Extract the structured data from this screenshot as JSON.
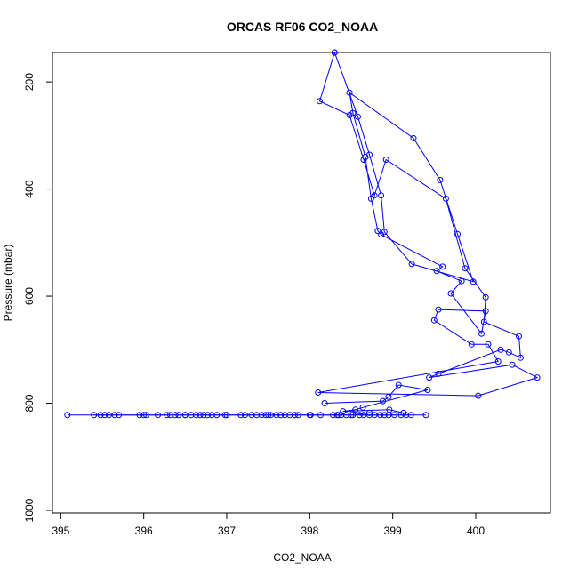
{
  "chart_data": {
    "type": "line",
    "title": "ORCAS RF06 CO2_NOAA",
    "xlabel": "CO2_NOAA",
    "ylabel": "Pressure (mbar)",
    "xlim": [
      394.9,
      400.9
    ],
    "ylim": [
      1005,
      145
    ],
    "y_reversed": true,
    "x_ticks": [
      395,
      396,
      397,
      398,
      399,
      400
    ],
    "y_ticks": [
      200,
      400,
      600,
      800,
      1000
    ],
    "series_color": "#0000ff",
    "marker": "open-circle",
    "grid": false,
    "series": [
      {
        "values": [
          [
            398.3,
            145
          ],
          [
            398.12,
            236
          ],
          [
            398.48,
            262
          ],
          [
            398.65,
            345
          ],
          [
            398.78,
            412
          ],
          [
            398.92,
            345
          ],
          [
            399.64,
            418
          ],
          [
            399.87,
            548
          ],
          [
            400.12,
            602
          ],
          [
            400.1,
            648
          ],
          [
            400.52,
            675
          ],
          [
            400.54,
            715
          ],
          [
            400.4,
            705
          ],
          [
            400.3,
            700
          ],
          [
            399.55,
            745
          ],
          [
            399.44,
            752
          ],
          [
            400.44,
            728
          ],
          [
            400.74,
            752
          ],
          [
            400.03,
            786
          ],
          [
            398.1,
            780
          ],
          [
            400.27,
            722
          ],
          [
            400.15,
            690
          ],
          [
            399.95,
            690
          ],
          [
            399.5,
            645
          ],
          [
            399.55,
            625
          ],
          [
            400.12,
            628
          ],
          [
            400.07,
            670
          ],
          [
            399.7,
            595
          ],
          [
            399.83,
            572
          ],
          [
            399.53,
            553
          ],
          [
            399.6,
            545
          ],
          [
            398.86,
            485
          ],
          [
            398.82,
            478
          ],
          [
            398.74,
            418
          ],
          [
            398.67,
            340
          ],
          [
            398.52,
            258
          ],
          [
            398.48,
            220
          ],
          [
            399.25,
            305
          ],
          [
            399.57,
            383
          ],
          [
            399.78,
            484
          ],
          [
            399.97,
            573
          ],
          [
            399.23,
            540
          ],
          [
            398.9,
            480
          ],
          [
            398.86,
            412
          ],
          [
            398.72,
            336
          ],
          [
            398.58,
            265
          ],
          [
            398.3,
            145
          ]
        ]
      },
      {
        "values": [
          [
            398.18,
            800
          ],
          [
            398.88,
            796
          ],
          [
            398.95,
            788
          ],
          [
            399.07,
            766
          ],
          [
            399.42,
            775
          ],
          [
            398.64,
            808
          ],
          [
            398.55,
            812
          ],
          [
            398.4,
            815
          ],
          [
            398.96,
            812
          ],
          [
            399.13,
            818
          ],
          [
            398.72,
            818
          ],
          [
            398.5,
            822
          ],
          [
            399.4,
            822
          ],
          [
            398.35,
            822
          ],
          [
            398.0,
            822
          ],
          [
            397.5,
            822
          ],
          [
            397.0,
            822
          ],
          [
            396.5,
            822
          ],
          [
            396.0,
            822
          ],
          [
            395.08,
            822
          ]
        ]
      },
      {
        "values": [
          [
            395.4,
            822
          ],
          [
            395.48,
            822
          ],
          [
            395.53,
            822
          ],
          [
            395.58,
            822
          ],
          [
            395.65,
            822
          ],
          [
            395.7,
            822
          ],
          [
            395.95,
            822
          ],
          [
            396.03,
            822
          ],
          [
            396.17,
            822
          ],
          [
            396.28,
            822
          ],
          [
            396.32,
            822
          ],
          [
            396.38,
            822
          ],
          [
            396.42,
            822
          ],
          [
            396.5,
            822
          ],
          [
            396.57,
            822
          ],
          [
            396.63,
            822
          ],
          [
            396.68,
            822
          ],
          [
            396.72,
            822
          ],
          [
            396.77,
            822
          ],
          [
            396.82,
            822
          ],
          [
            396.88,
            822
          ],
          [
            396.98,
            822
          ],
          [
            397.17,
            822
          ],
          [
            397.22,
            822
          ],
          [
            397.3,
            822
          ],
          [
            397.36,
            822
          ],
          [
            397.42,
            822
          ],
          [
            397.47,
            822
          ],
          [
            397.53,
            822
          ],
          [
            397.6,
            822
          ],
          [
            397.65,
            822
          ],
          [
            397.7,
            822
          ],
          [
            397.76,
            822
          ],
          [
            397.82,
            822
          ],
          [
            397.86,
            822
          ],
          [
            398.01,
            822
          ],
          [
            398.13,
            822
          ],
          [
            398.28,
            822
          ],
          [
            398.33,
            822
          ],
          [
            398.38,
            822
          ],
          [
            398.44,
            822
          ],
          [
            398.52,
            822
          ],
          [
            398.6,
            822
          ],
          [
            398.65,
            822
          ],
          [
            398.72,
            822
          ],
          [
            398.78,
            822
          ],
          [
            398.85,
            822
          ],
          [
            398.9,
            822
          ],
          [
            398.95,
            822
          ],
          [
            399.02,
            822
          ],
          [
            399.1,
            822
          ],
          [
            399.16,
            822
          ],
          [
            399.22,
            822
          ]
        ]
      }
    ]
  }
}
